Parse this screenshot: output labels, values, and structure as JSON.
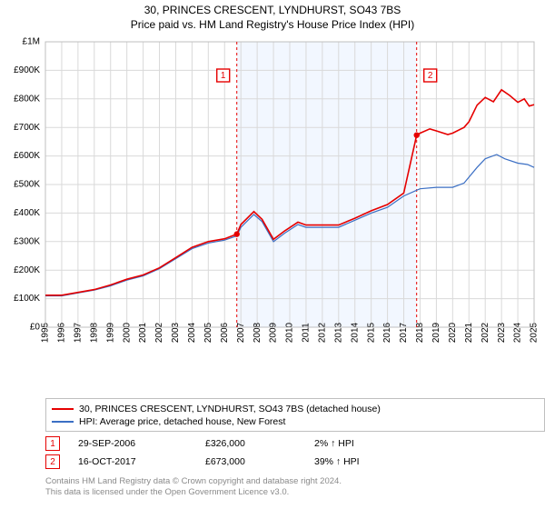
{
  "title": {
    "line1": "30, PRINCES CRESCENT, LYNDHURST, SO43 7BS",
    "line2": "Price paid vs. HM Land Registry's House Price Index (HPI)"
  },
  "chart": {
    "type": "line",
    "background_color": "#ffffff",
    "grid_color": "#d9d9d9",
    "highlight_fill": "#e8f0ff",
    "highlight_range_x": [
      2006.75,
      2017.79
    ],
    "xlim": [
      1995,
      2025
    ],
    "x_ticks": [
      1995,
      1996,
      1997,
      1998,
      1999,
      2000,
      2001,
      2002,
      2003,
      2004,
      2005,
      2006,
      2007,
      2008,
      2009,
      2010,
      2011,
      2012,
      2013,
      2014,
      2015,
      2016,
      2017,
      2018,
      2019,
      2020,
      2021,
      2022,
      2023,
      2024,
      2025
    ],
    "ylim": [
      0,
      1000000
    ],
    "y_ticks": [
      0,
      100000,
      200000,
      300000,
      400000,
      500000,
      600000,
      700000,
      800000,
      900000,
      1000000
    ],
    "y_tick_labels": [
      "£0",
      "£100K",
      "£200K",
      "£300K",
      "£400K",
      "£500K",
      "£600K",
      "£700K",
      "£800K",
      "£900K",
      "£1M"
    ],
    "series": {
      "hpi": {
        "label": "HPI: Average price, detached house, New Forest",
        "color": "#3b6fc4",
        "width": 1.2,
        "points": [
          [
            1995,
            110000
          ],
          [
            1996,
            110000
          ],
          [
            1997,
            120000
          ],
          [
            1998,
            130000
          ],
          [
            1999,
            145000
          ],
          [
            2000,
            165000
          ],
          [
            2001,
            180000
          ],
          [
            2002,
            205000
          ],
          [
            2003,
            240000
          ],
          [
            2004,
            275000
          ],
          [
            2005,
            295000
          ],
          [
            2006,
            305000
          ],
          [
            2006.75,
            320000
          ],
          [
            2007,
            350000
          ],
          [
            2007.8,
            395000
          ],
          [
            2008.3,
            370000
          ],
          [
            2009,
            300000
          ],
          [
            2009.7,
            330000
          ],
          [
            2010.5,
            360000
          ],
          [
            2011,
            350000
          ],
          [
            2012,
            350000
          ],
          [
            2013,
            350000
          ],
          [
            2014,
            375000
          ],
          [
            2015,
            400000
          ],
          [
            2016,
            420000
          ],
          [
            2017,
            460000
          ],
          [
            2017.79,
            480000
          ],
          [
            2018,
            485000
          ],
          [
            2019,
            490000
          ],
          [
            2020,
            490000
          ],
          [
            2020.7,
            505000
          ],
          [
            2021.5,
            560000
          ],
          [
            2022,
            590000
          ],
          [
            2022.7,
            605000
          ],
          [
            2023.2,
            590000
          ],
          [
            2024,
            575000
          ],
          [
            2024.6,
            570000
          ],
          [
            2025,
            560000
          ]
        ]
      },
      "property": {
        "label": "30, PRINCES CRESCENT, LYNDHURST, SO43 7BS (detached house)",
        "color": "#e60000",
        "width": 1.6,
        "points": [
          [
            1995,
            112000
          ],
          [
            1996,
            112000
          ],
          [
            1997,
            122000
          ],
          [
            1998,
            132000
          ],
          [
            1999,
            148000
          ],
          [
            2000,
            168000
          ],
          [
            2001,
            183000
          ],
          [
            2002,
            208000
          ],
          [
            2003,
            244000
          ],
          [
            2004,
            280000
          ],
          [
            2005,
            300000
          ],
          [
            2006,
            310000
          ],
          [
            2006.75,
            326000
          ],
          [
            2007,
            360000
          ],
          [
            2007.8,
            405000
          ],
          [
            2008.3,
            378000
          ],
          [
            2009,
            308000
          ],
          [
            2009.7,
            338000
          ],
          [
            2010.5,
            368000
          ],
          [
            2011,
            358000
          ],
          [
            2012,
            358000
          ],
          [
            2013,
            358000
          ],
          [
            2014,
            382000
          ],
          [
            2015,
            408000
          ],
          [
            2016,
            430000
          ],
          [
            2017,
            470000
          ],
          [
            2017.79,
            673000
          ],
          [
            2018,
            680000
          ],
          [
            2018.6,
            695000
          ],
          [
            2019,
            688000
          ],
          [
            2019.7,
            675000
          ],
          [
            2020,
            680000
          ],
          [
            2020.7,
            700000
          ],
          [
            2021,
            720000
          ],
          [
            2021.5,
            778000
          ],
          [
            2022,
            805000
          ],
          [
            2022.5,
            790000
          ],
          [
            2023,
            832000
          ],
          [
            2023.5,
            812000
          ],
          [
            2024,
            788000
          ],
          [
            2024.4,
            800000
          ],
          [
            2024.7,
            775000
          ],
          [
            2025,
            780000
          ]
        ]
      }
    },
    "markers": [
      {
        "n": "1",
        "x": 2006.75,
        "y": 326000
      },
      {
        "n": "2",
        "x": 2017.79,
        "y": 673000
      }
    ],
    "marker_color": "#e60000"
  },
  "legend": {
    "items": [
      {
        "color": "#e60000",
        "label_key": "chart.series.property.label"
      },
      {
        "color": "#3b6fc4",
        "label_key": "chart.series.hpi.label"
      }
    ]
  },
  "sales": [
    {
      "n": "1",
      "date": "29-SEP-2006",
      "price": "£326,000",
      "delta": "2% ↑ HPI"
    },
    {
      "n": "2",
      "date": "16-OCT-2017",
      "price": "£673,000",
      "delta": "39% ↑ HPI"
    }
  ],
  "footer": {
    "l1": "Contains HM Land Registry data © Crown copyright and database right 2024.",
    "l2": "This data is licensed under the Open Government Licence v3.0."
  }
}
